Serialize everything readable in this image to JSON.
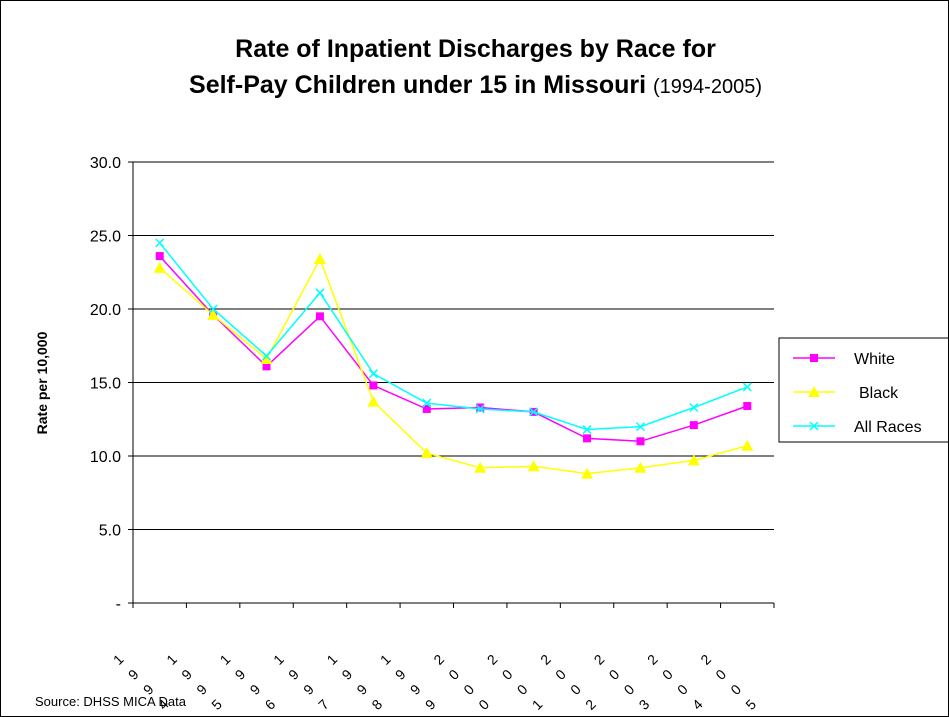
{
  "chart_data": {
    "type": "line",
    "title_line1": "Rate of Inpatient Discharges by Race for",
    "title_line2": "Self-Pay Children under 15 in Missouri",
    "title_years": "(1994-2005)",
    "ylabel": "Rate per 10,000",
    "ylim": [
      0,
      30
    ],
    "y_ticks": [
      "30.0",
      "25.0",
      "20.0",
      "15.0",
      "10.0",
      "5.0",
      "-"
    ],
    "y_tick_values": [
      30,
      25,
      20,
      15,
      10,
      5,
      0
    ],
    "categories": [
      "1994",
      "1995",
      "1996",
      "1997",
      "1998",
      "1999",
      "2000",
      "2001",
      "2002",
      "2003",
      "2004",
      "2005"
    ],
    "grid": true,
    "legend_position": "right",
    "series": [
      {
        "name": "White",
        "color": "#ff00ff",
        "marker": "square",
        "values": [
          23.6,
          19.6,
          16.1,
          19.5,
          14.8,
          13.2,
          13.3,
          13.0,
          11.2,
          11.0,
          12.1,
          13.4
        ]
      },
      {
        "name": "Black",
        "color": "#ffff00",
        "marker": "triangle",
        "values": [
          22.8,
          19.6,
          16.6,
          23.4,
          13.7,
          10.2,
          9.2,
          9.3,
          8.8,
          9.2,
          9.7,
          10.7
        ]
      },
      {
        "name": "All Races",
        "color": "#00ffff",
        "marker": "x",
        "values": [
          24.5,
          20.0,
          16.8,
          21.1,
          15.6,
          13.6,
          13.2,
          13.0,
          11.8,
          12.0,
          13.3,
          14.7
        ]
      }
    ]
  },
  "source": "Source: DHSS MICA Data"
}
